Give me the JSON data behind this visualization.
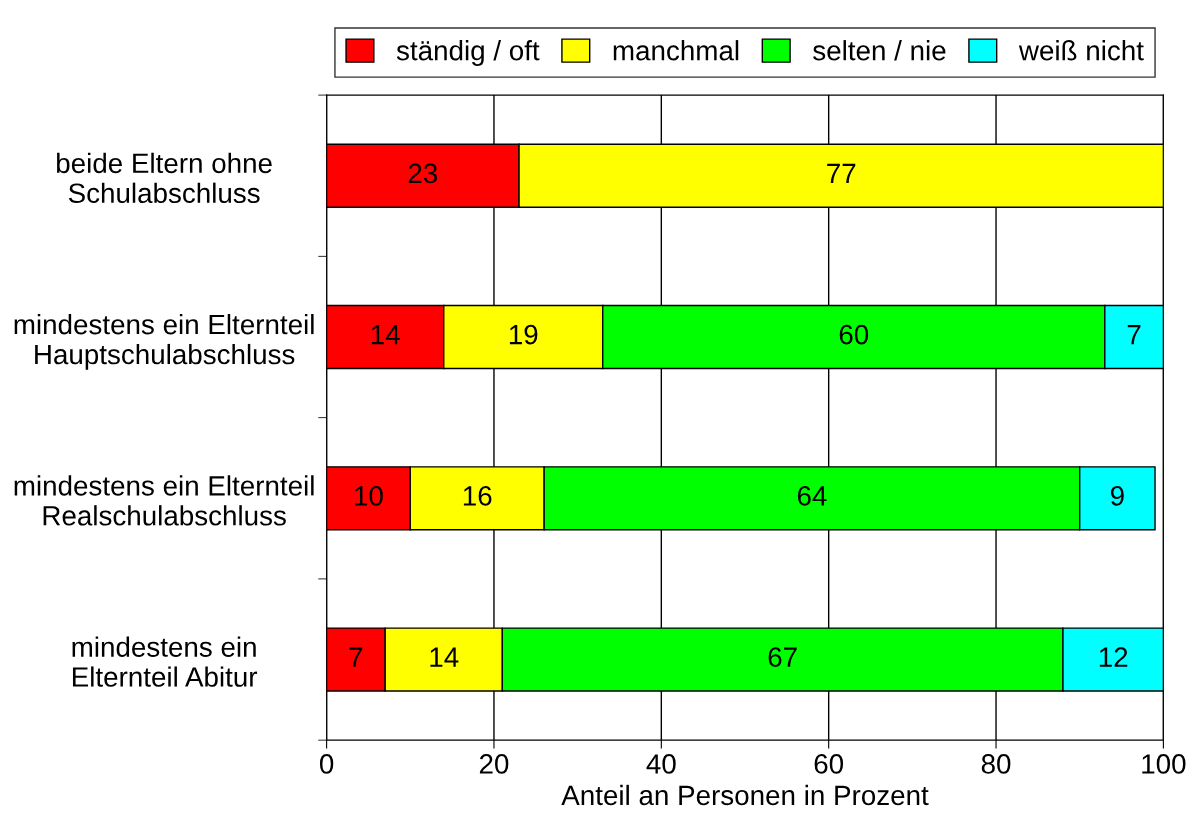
{
  "chart_data": {
    "type": "bar",
    "orientation": "horizontal",
    "stacked": true,
    "categories": [
      "beide Eltern ohne\nSchulabschluss",
      "mindestens ein Elternteil\nHauptschulabschluss",
      "mindestens ein Elternteil\nRealschulabschluss",
      "mindestens ein\nElternteil Abitur"
    ],
    "series": [
      {
        "name": "ständig / oft",
        "color": "#ff0000",
        "values": [
          23,
          14,
          10,
          7
        ]
      },
      {
        "name": "manchmal",
        "color": "#ffff00",
        "values": [
          77,
          19,
          16,
          14
        ]
      },
      {
        "name": "selten / nie",
        "color": "#00ff00",
        "values": [
          null,
          60,
          64,
          67
        ]
      },
      {
        "name": "weiß nicht",
        "color": "#00ffff",
        "values": [
          null,
          7,
          9,
          12
        ]
      }
    ],
    "xlabel": "Anteil an Personen in Prozent",
    "xlim": [
      0,
      100
    ],
    "xticks": [
      0,
      20,
      40,
      60,
      80,
      100
    ],
    "grid": "x",
    "legend": "top",
    "data_labels": true
  }
}
